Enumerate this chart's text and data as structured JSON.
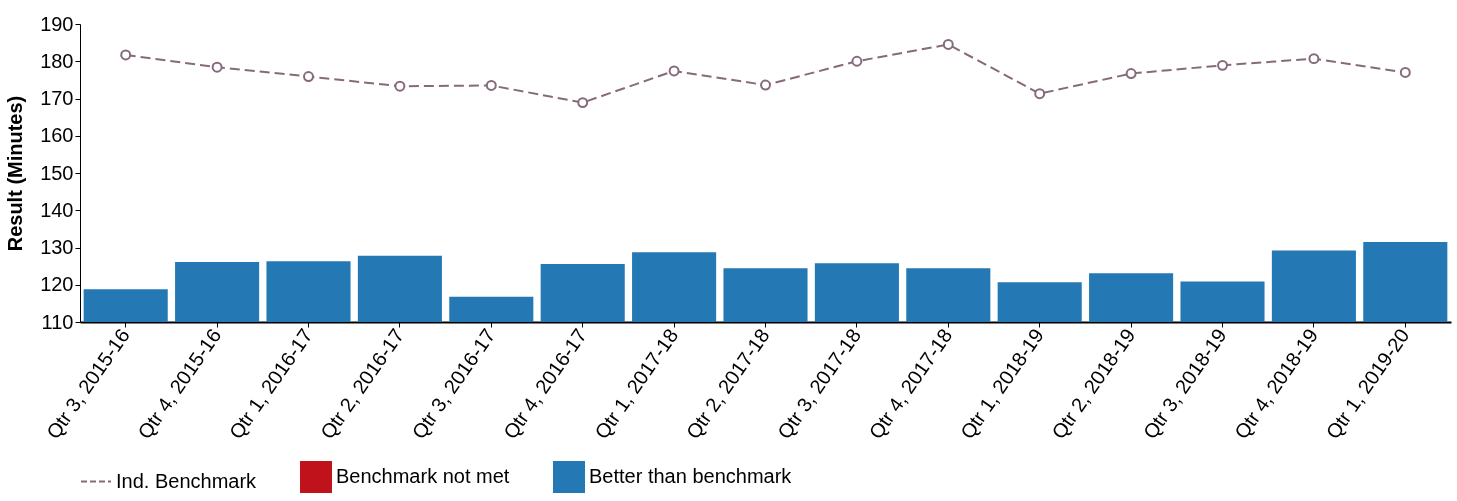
{
  "chart_data": {
    "type": "bar",
    "ylabel": "Result (Minutes)",
    "categories": [
      "Qtr 3, 2015-16",
      "Qtr 4, 2015-16",
      "Qtr 1, 2016-17",
      "Qtr 2, 2016-17",
      "Qtr 3, 2016-17",
      "Qtr 4, 2016-17",
      "Qtr 1, 2017-18",
      "Qtr 2, 2017-18",
      "Qtr 3, 2017-18",
      "Qtr 4, 2017-18",
      "Qtr 1, 2018-19",
      "Qtr 2, 2018-19",
      "Qtr 3, 2018-19",
      "Qtr 4, 2018-19",
      "Qtr 1, 2019-20"
    ],
    "series": [
      {
        "name": "Ind. Benchmark",
        "type": "line",
        "color": "#866a7c",
        "marker": "circle",
        "line_style": "dashed",
        "values": [
          181.7,
          178.4,
          175.9,
          173.3,
          173.5,
          168.9,
          177.4,
          173.6,
          180.0,
          184.5,
          171.3,
          176.7,
          178.9,
          180.7,
          177.0
        ]
      },
      {
        "name": "Benchmark not met",
        "color": "#c0121b",
        "values": [
          null,
          null,
          null,
          null,
          null,
          null,
          null,
          null,
          null,
          null,
          null,
          null,
          null,
          null,
          null
        ]
      },
      {
        "name": "Better than benchmark",
        "color": "#2479b5",
        "values": [
          118.8,
          126.1,
          126.3,
          127.8,
          116.8,
          125.6,
          128.7,
          124.4,
          125.8,
          124.4,
          120.7,
          123.1,
          120.9,
          129.2,
          131.5
        ]
      }
    ],
    "ylim": [
      110,
      190
    ],
    "yticks": [
      110,
      120,
      130,
      140,
      150,
      160,
      170,
      180,
      190
    ],
    "legend": "bottom",
    "grid": false
  }
}
